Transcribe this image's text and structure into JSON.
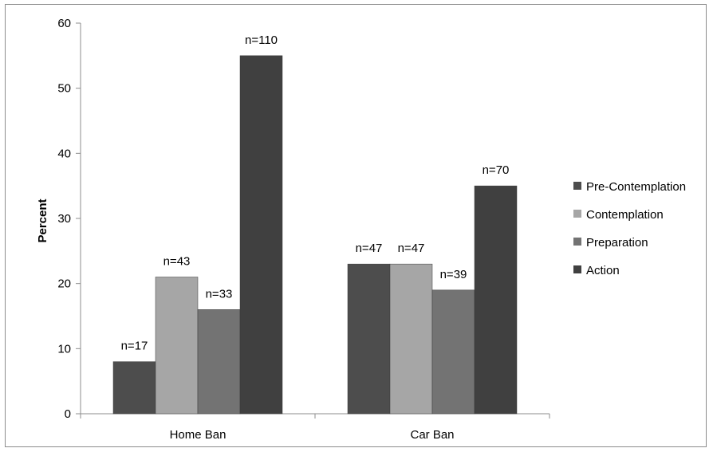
{
  "chart_data": {
    "type": "bar",
    "title": "",
    "xlabel": "",
    "ylabel": "Percent",
    "ylim": [
      0,
      60
    ],
    "yticks": [
      0,
      10,
      20,
      30,
      40,
      50,
      60
    ],
    "grid": false,
    "legend_position": "right",
    "categories": [
      "Home Ban",
      "Car Ban"
    ],
    "series": [
      {
        "name": "Pre-Contemplation",
        "color": "#4d4d4d",
        "values": [
          8,
          23
        ],
        "labels": [
          "n=17",
          "n=47"
        ]
      },
      {
        "name": "Contemplation",
        "color": "#a6a6a6",
        "values": [
          21,
          23
        ],
        "labels": [
          "n=43",
          "n=47"
        ]
      },
      {
        "name": "Preparation",
        "color": "#737373",
        "values": [
          16,
          19
        ],
        "labels": [
          "n=33",
          "n=39"
        ]
      },
      {
        "name": "Action",
        "color": "#404040",
        "values": [
          55,
          35
        ],
        "labels": [
          "n=110",
          "n=70"
        ]
      }
    ]
  }
}
